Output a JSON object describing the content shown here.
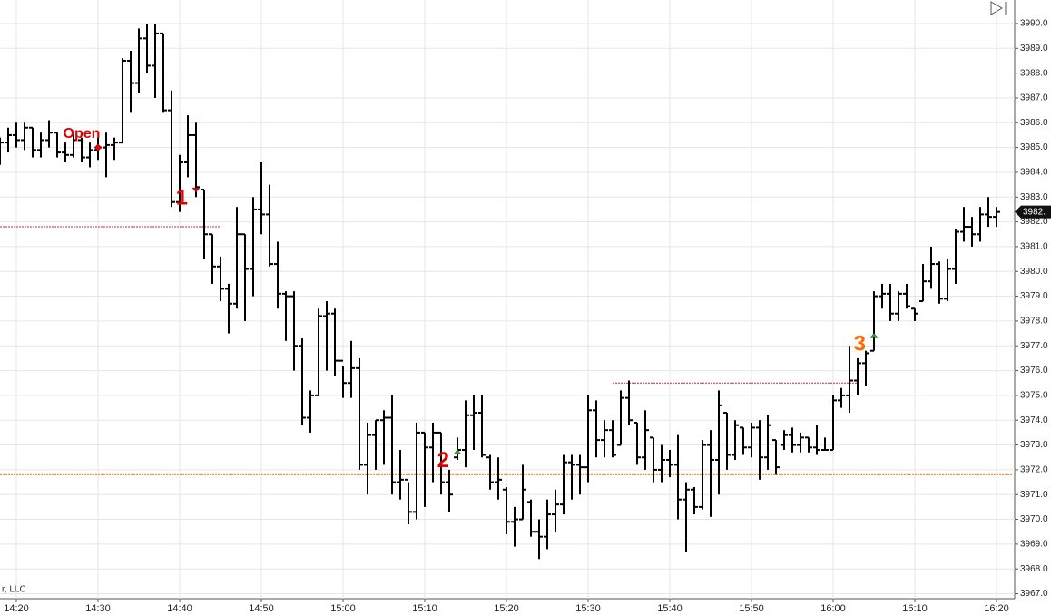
{
  "chart_data": {
    "type": "ohlc",
    "categories": [
      null,
      null,
      "14:20",
      null,
      null,
      null,
      null,
      null,
      null,
      null,
      null,
      null,
      "14:30",
      null,
      null,
      null,
      null,
      null,
      null,
      null,
      null,
      null,
      "14:40",
      null,
      null,
      null,
      null,
      null,
      null,
      null,
      null,
      null,
      "14:50",
      null,
      null,
      null,
      null,
      null,
      null,
      null,
      null,
      null,
      "15:00",
      null,
      null,
      null,
      null,
      null,
      null,
      null,
      null,
      null,
      "15:10",
      null,
      null,
      null,
      null,
      null,
      null,
      null,
      null,
      null,
      "15:20",
      null,
      null,
      null,
      null,
      null,
      null,
      null,
      null,
      null,
      "15:30",
      null,
      null,
      null,
      null,
      null,
      null,
      null,
      null,
      null,
      "15:40",
      null,
      null,
      null,
      null,
      null,
      null,
      null,
      null,
      null,
      "15:50",
      null,
      null,
      null,
      null,
      null,
      null,
      null,
      null,
      null,
      "16:00",
      null,
      null,
      null,
      null,
      null,
      null,
      null,
      null,
      null,
      "16:10",
      null,
      null,
      null,
      null,
      null,
      null,
      null,
      null,
      null,
      "16:20"
    ],
    "open": [
      3984.8,
      3985.2,
      3985.5,
      3985.3,
      3985.8,
      3984.9,
      3985.3,
      3985.6,
      3984.8,
      3984.7,
      3985.3,
      3984.6,
      3984.9,
      3985,
      3985.1,
      3985.2,
      3988.5,
      3987.6,
      3989.4,
      3988.3,
      3989.6,
      3986.5,
      3982.8,
      3984.4,
      3985.5,
      3983.3,
      3981.5,
      3980.2,
      3979.3,
      3978.7,
      3981.5,
      3980.1,
      3982.5,
      3982.3,
      3980.3,
      3979.1,
      3979,
      3977,
      3974.1,
      3975,
      3978.2,
      3978.3,
      3976.4,
      3975.5,
      3976.1,
      3972.2,
      3973.4,
      3974,
      3974.1,
      3971.5,
      3971.6,
      3970.3,
      3973.5,
      3972.9,
      3973.5,
      3971.5,
      3972.5,
      3972.8,
      3974.2,
      3974.3,
      3972.5,
      3971.5,
      3971.2,
      3969.9,
      3970,
      3970.7,
      3969.5,
      3969.3,
      3970.2,
      3970.6,
      3972.3,
      3972.2,
      3972.1,
      3974.4,
      3973.2,
      3973.6,
      3973,
      3974.9,
      3973.9,
      3972.5,
      3973.3,
      3972,
      3972.4,
      3972.2,
      3970.8,
      3971.2,
      3970.5,
      3973,
      3972.4,
      3974.3,
      3972.6,
      3973.7,
      3972.9,
      3973.7,
      3972.5,
      3973.2,
      3973,
      3973.4,
      3973,
      3973.3,
      3972.9,
      3972.8,
      3972.8,
      3974.8,
      3975,
      3975.6,
      3976.3,
      3976.8,
      3979,
      3979.1,
      3978.3,
      3979.1,
      3978.5,
      3978.8,
      3979.6,
      3980.3,
      3978.9,
      3980.1,
      3981.6,
      3981.8,
      3981.5,
      3982.3,
      3982.2
    ],
    "high": [
      3985.4,
      3985.8,
      3986,
      3986,
      3985.8,
      3985.6,
      3986.1,
      3985.6,
      3985.2,
      3985.5,
      3985.4,
      3985.2,
      3985.4,
      3985.6,
      3985.4,
      3988.6,
      3988.9,
      3989.8,
      3990,
      3990,
      3989.6,
      3987.3,
      3984.7,
      3986.3,
      3986,
      3983.3,
      3981.5,
      3980.6,
      3979.5,
      3982.6,
      3981.5,
      3983,
      3984.4,
      3983.5,
      3981.2,
      3979.2,
      3979.2,
      3977.3,
      3975.2,
      3978.5,
      3978.8,
      3978.5,
      3976.2,
      3977.2,
      3976.5,
      3973.9,
      3974,
      3974.4,
      3975,
      3972.8,
      3971.5,
      3973.9,
      3973.5,
      3973.9,
      3973.5,
      3972,
      3973.3,
      3974.8,
      3975,
      3975,
      3972.6,
      3972.5,
      3971.3,
      3970.5,
      3972.2,
      3970.8,
      3970,
      3970.8,
      3971.2,
      3972.6,
      3972.6,
      3972.6,
      3975,
      3974.8,
      3974,
      3974,
      3975.2,
      3975.6,
      3973.9,
      3974.4,
      3973.3,
      3973,
      3972.8,
      3973.4,
      3971.5,
      3971.3,
      3973.2,
      3973.6,
      3975.2,
      3974.3,
      3974,
      3973.7,
      3973.9,
      3974,
      3974.2,
      3973.2,
      3973.6,
      3973.7,
      3973.5,
      3973.3,
      3973.8,
      3973.3,
      3975,
      3975.3,
      3977,
      3976.5,
      3976.8,
      3979.2,
      3979.5,
      3979.5,
      3979.2,
      3979.5,
      3978.5,
      3980.3,
      3981,
      3980.4,
      3980.5,
      3981.7,
      3982.6,
      3982.2,
      3982.6,
      3983,
      3982.6
    ],
    "low": [
      3984.3,
      3984.8,
      3985,
      3984.9,
      3984.6,
      3984.6,
      3985,
      3984.6,
      3984.4,
      3984.6,
      3984.4,
      3984.2,
      3984.5,
      3983.8,
      3984.5,
      3985.2,
      3986.4,
      3987.2,
      3988,
      3987,
      3986.4,
      3982.6,
      3982.4,
      3983.8,
      3983,
      3980.5,
      3979.5,
      3978.8,
      3977.5,
      3978.5,
      3978,
      3979,
      3981.5,
      3980.2,
      3978.5,
      3977.2,
      3976,
      3973.8,
      3973.5,
      3975,
      3976,
      3975.8,
      3974.9,
      3974.9,
      3972,
      3971,
      3972,
      3972.2,
      3971,
      3970.8,
      3969.8,
      3970,
      3970.5,
      3971.5,
      3971,
      3970.3,
      3972.4,
      3972.1,
      3972.8,
      3972.5,
      3971.2,
      3970.8,
      3969.4,
      3968.9,
      3970,
      3969.3,
      3968.4,
      3968.8,
      3969.5,
      3970.2,
      3970.8,
      3971,
      3971.5,
      3972.5,
      3972.5,
      3972.5,
      3973,
      3973.8,
      3972.2,
      3972,
      3971.5,
      3971.5,
      3971.7,
      3970,
      3968.7,
      3970.2,
      3970.4,
      3970.1,
      3971,
      3972,
      3972.4,
      3972.6,
      3972.5,
      3971.6,
      3972,
      3971.8,
      3972.8,
      3972.7,
      3972.7,
      3972.7,
      3972.6,
      3972.8,
      3972.8,
      3974.5,
      3974.3,
      3975,
      3975.4,
      3976.8,
      3978.5,
      3978,
      3978,
      3978.5,
      3978,
      3978.8,
      3979.3,
      3978.7,
      3978.8,
      3979.5,
      3981.2,
      3981,
      3981.2,
      3981.8,
      3981.8
    ],
    "close": [
      3985.2,
      3985.5,
      3985.3,
      3985.8,
      3984.9,
      3985.3,
      3985.6,
      3984.8,
      3984.7,
      3985.3,
      3984.6,
      3984.9,
      3985,
      3985.1,
      3985.2,
      3988.5,
      3987.6,
      3989.4,
      3988.3,
      3989.6,
      3986.5,
      3982.8,
      3984.4,
      3985.5,
      3983.4,
      3981.5,
      3980.2,
      3979.3,
      3978.7,
      3981.5,
      3980.1,
      3982.5,
      3982.3,
      3980.3,
      3979.1,
      3979,
      3977,
      3974.1,
      3975,
      3978.2,
      3978.3,
      3976.4,
      3975.5,
      3976.1,
      3972.2,
      3973.4,
      3974,
      3974.1,
      3971.5,
      3971.6,
      3970.3,
      3973.5,
      3972.9,
      3973.5,
      3971.5,
      3971,
      3972.8,
      3974.2,
      3974.3,
      3972.6,
      3971.5,
      3971.6,
      3969.9,
      3970,
      3971.2,
      3969.5,
      3969.3,
      3970.2,
      3970.6,
      3972.3,
      3972.2,
      3972.1,
      3974.4,
      3973.2,
      3973.6,
      3972.6,
      3974.9,
      3974,
      3972.5,
      3973.6,
      3972,
      3972.4,
      3972.2,
      3970.8,
      3971.2,
      3970.5,
      3973,
      3972.4,
      3974.6,
      3972.6,
      3973.8,
      3972.9,
      3973.7,
      3972.5,
      3973.8,
      3972.1,
      3973.4,
      3973,
      3973.3,
      3972.9,
      3972.8,
      3972.8,
      3974.8,
      3975,
      3975.6,
      3976.3,
      3976.7,
      3979,
      3979.1,
      3978.3,
      3979.1,
      3978.6,
      3978.3,
      3979.6,
      3980.3,
      3978.9,
      3980.1,
      3981.6,
      3981.8,
      3981.5,
      3982.3,
      3982.2,
      3982.4
    ],
    "color": "#000000",
    "ylim": [
      3966.8,
      3990.95
    ],
    "yticks": [
      {
        "value": 3967,
        "label": "3967.0"
      },
      {
        "value": 3968,
        "label": "3968.0"
      },
      {
        "value": 3969,
        "label": "3969.0"
      },
      {
        "value": 3970,
        "label": "3970.0"
      },
      {
        "value": 3971,
        "label": "3971.0"
      },
      {
        "value": 3972,
        "label": "3972.0"
      },
      {
        "value": 3973,
        "label": "3973.0"
      },
      {
        "value": 3974,
        "label": "3974.0"
      },
      {
        "value": 3975,
        "label": "3975.0"
      },
      {
        "value": 3976,
        "label": "3976.0"
      },
      {
        "value": 3977,
        "label": "3977.0"
      },
      {
        "value": 3978,
        "label": "3978.0"
      },
      {
        "value": 3979,
        "label": "3979.0"
      },
      {
        "value": 3980,
        "label": "3980.0"
      },
      {
        "value": 3981,
        "label": "3981.0"
      },
      {
        "value": 3982,
        "label": "3982.0"
      },
      {
        "value": 3983,
        "label": "3983.0"
      },
      {
        "value": 3984,
        "label": "3984.0"
      },
      {
        "value": 3985,
        "label": "3985.0"
      },
      {
        "value": 3986,
        "label": "3986.0"
      },
      {
        "value": 3987,
        "label": "3987.0"
      },
      {
        "value": 3988,
        "label": "3988.0"
      },
      {
        "value": 3989,
        "label": "3989.0"
      },
      {
        "value": 3990,
        "label": "3990.0"
      }
    ],
    "grid": true,
    "last_price": {
      "value": 3982.4,
      "label": "3982."
    },
    "levels": [
      {
        "value": 3981.8,
        "from": 0,
        "to": 27,
        "color": "#d0204a"
      },
      {
        "value": 3975.5,
        "from": 75,
        "to": 105,
        "color": "#d0204a"
      },
      {
        "value": 3971.8,
        "from": 0,
        "to": 124,
        "color": "#ff7f0e"
      }
    ],
    "annotations": [
      {
        "label": "Open",
        "index": 12,
        "value": 3985,
        "shape": "diamond",
        "color": "#e00000",
        "marker_color": "#e00000"
      },
      {
        "label": "1",
        "index": 24,
        "value": 3983.3,
        "shape": "down",
        "color": "#e00000",
        "marker_color": "#e00000"
      },
      {
        "label": "2",
        "index": 56,
        "value": 3972.7,
        "shape": "up",
        "color": "#e00000",
        "marker_color": "#22aa22"
      },
      {
        "label": "3",
        "index": 107,
        "value": 3977.4,
        "shape": "up",
        "color": "#ff6a00",
        "marker_color": "#22aa22"
      }
    ],
    "footer": "r, LLC"
  }
}
